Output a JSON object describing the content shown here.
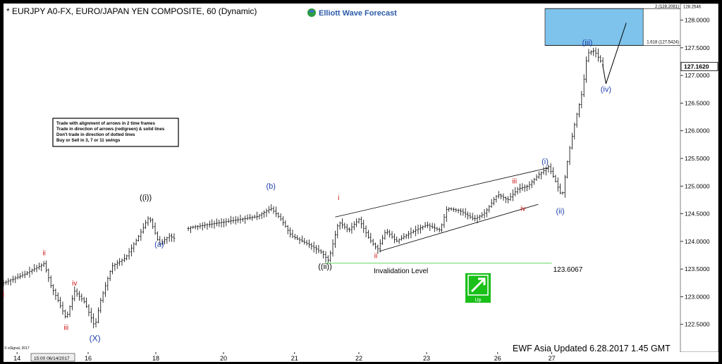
{
  "header": {
    "title": "* EURJPY A0-FX, EURO/JAPAN YEN COMPOSITE, 60 (Dynamic)",
    "brand": "Elliott Wave Forecast"
  },
  "footer": {
    "update_text": "EWF Asia Updated 6.28.2017 1.45 GMT",
    "copyright": "© eSignal, 2017",
    "cursor_time": "15:00 06/14/2017"
  },
  "rules_box": {
    "lines": [
      "Trade with alignment of arrows in 2 time frames",
      "Trade in direction of arrows (red/green) & solid lines",
      "Don't trade in direction of dotted lines",
      "Buy or Sell in 3, 7 or 11 swings"
    ]
  },
  "up_badge": {
    "label": "Up",
    "color": "#19c019"
  },
  "colors": {
    "wave_blue": "#1f3fa8",
    "wave_red": "#cc1010",
    "invalidation_green": "#7ee07e",
    "target_box": "#7ec3ec",
    "background": "#ffffff"
  },
  "chart_data": {
    "type": "ohlc",
    "symbol": "EURJPY",
    "timeframe": "60",
    "ylim": [
      122.0,
      128.3
    ],
    "y_ticks": [
      "122.5000",
      "123.0000",
      "123.5000",
      "124.0000",
      "124.5000",
      "125.0000",
      "125.5000",
      "126.0000",
      "126.5000",
      "127.0000",
      "127.5000",
      "128.0000"
    ],
    "y_tick_values": [
      122.5,
      123.0,
      123.5,
      124.0,
      124.5,
      125.0,
      125.5,
      126.0,
      126.5,
      127.0,
      127.5,
      128.0
    ],
    "x_ticks": [
      "14",
      "16",
      "18",
      "20",
      "21",
      "22",
      "23",
      "26",
      "27"
    ],
    "x_tick_values": [
      0.4,
      2.5,
      4.5,
      6.5,
      8.6,
      10.5,
      12.5,
      14.6,
      16.2
    ],
    "xlim": [
      0,
      20
    ],
    "last_price": "127.1620",
    "last_price_value": 127.162,
    "invalidation": {
      "label": "Invalidation Level",
      "value_label": "123.6067",
      "value": 123.6067,
      "x_start": 9.5,
      "x_end": 16.2
    },
    "target_zone": {
      "fib_low_label": "1.618 (127.5424)",
      "fib_high_label": "2 (128.2081)",
      "low": 127.5424,
      "high": 128.2081,
      "top_right_label": "128.2546",
      "top_right_value": 128.2546,
      "x_start": 16.0,
      "x_end": 18.9
    },
    "channel_lines": [
      {
        "x1": 9.8,
        "y1": 124.44,
        "x2": 16.1,
        "y2": 125.33
      },
      {
        "x1": 11.1,
        "y1": 123.82,
        "x2": 15.8,
        "y2": 124.67
      }
    ],
    "projection_path": [
      [
        17.8,
        126.85
      ],
      [
        18.4,
        127.95
      ]
    ],
    "wave_labels": [
      {
        "text": "i",
        "x": 0.0,
        "y": 123.0,
        "color": "red",
        "size": 10
      },
      {
        "text": "ii",
        "x": 1.2,
        "y": 123.75,
        "color": "red",
        "size": 10
      },
      {
        "text": "iii",
        "x": 1.85,
        "y": 122.4,
        "color": "red",
        "size": 10
      },
      {
        "text": "iv",
        "x": 2.1,
        "y": 123.2,
        "color": "red",
        "size": 10
      },
      {
        "text": "(X)",
        "x": 2.7,
        "y": 122.2,
        "color": "blue",
        "size": 12
      },
      {
        "text": "((i))",
        "x": 4.2,
        "y": 124.75,
        "color": "black",
        "size": 11
      },
      {
        "text": "(a)",
        "x": 4.6,
        "y": 123.9,
        "color": "blue",
        "size": 11
      },
      {
        "text": "(b)",
        "x": 7.9,
        "y": 124.95,
        "color": "blue",
        "size": 11
      },
      {
        "text": "((ii))",
        "x": 9.5,
        "y": 123.5,
        "color": "black",
        "size": 11
      },
      {
        "text": "i",
        "x": 9.9,
        "y": 124.75,
        "color": "red",
        "size": 10
      },
      {
        "text": "ii",
        "x": 11.0,
        "y": 123.7,
        "color": "red",
        "size": 10
      },
      {
        "text": "iii",
        "x": 15.1,
        "y": 125.05,
        "color": "red",
        "size": 10
      },
      {
        "text": "iv",
        "x": 15.35,
        "y": 124.55,
        "color": "red",
        "size": 10
      },
      {
        "text": "(i)",
        "x": 16.0,
        "y": 125.4,
        "color": "blue",
        "size": 11
      },
      {
        "text": "(ii)",
        "x": 16.45,
        "y": 124.5,
        "color": "blue",
        "size": 11
      },
      {
        "text": "(iii)",
        "x": 17.25,
        "y": 127.55,
        "color": "blue",
        "size": 11
      },
      {
        "text": "(iv)",
        "x": 17.8,
        "y": 126.7,
        "color": "blue",
        "size": 11
      }
    ],
    "price_anchors": [
      [
        0.0,
        123.25
      ],
      [
        0.6,
        123.4
      ],
      [
        1.2,
        123.6
      ],
      [
        1.4,
        123.2
      ],
      [
        1.6,
        122.95
      ],
      [
        1.85,
        122.6
      ],
      [
        2.1,
        123.1
      ],
      [
        2.4,
        122.9
      ],
      [
        2.7,
        122.45
      ],
      [
        2.85,
        122.9
      ],
      [
        3.2,
        123.55
      ],
      [
        3.6,
        123.7
      ],
      [
        4.0,
        124.1
      ],
      [
        4.3,
        124.45
      ],
      [
        4.45,
        124.2
      ],
      [
        4.6,
        123.95
      ],
      [
        4.9,
        124.1
      ],
      [
        5.05,
        124.05
      ],
      [
        5.5,
        124.25
      ],
      [
        6.0,
        124.3
      ],
      [
        6.5,
        124.35
      ],
      [
        7.0,
        124.4
      ],
      [
        7.5,
        124.45
      ],
      [
        7.9,
        124.6
      ],
      [
        8.2,
        124.4
      ],
      [
        8.5,
        124.1
      ],
      [
        9.0,
        123.95
      ],
      [
        9.4,
        123.8
      ],
      [
        9.6,
        123.65
      ],
      [
        9.9,
        124.35
      ],
      [
        10.2,
        124.2
      ],
      [
        10.5,
        124.4
      ],
      [
        10.8,
        124.05
      ],
      [
        11.05,
        123.85
      ],
      [
        11.3,
        124.2
      ],
      [
        11.6,
        124.0
      ],
      [
        12.0,
        124.15
      ],
      [
        12.5,
        124.3
      ],
      [
        12.9,
        124.2
      ],
      [
        13.1,
        124.6
      ],
      [
        13.5,
        124.55
      ],
      [
        13.9,
        124.4
      ],
      [
        14.2,
        124.5
      ],
      [
        14.6,
        124.85
      ],
      [
        14.9,
        124.75
      ],
      [
        15.2,
        124.95
      ],
      [
        15.5,
        125.0
      ],
      [
        15.8,
        125.2
      ],
      [
        16.1,
        125.35
      ],
      [
        16.3,
        125.1
      ],
      [
        16.5,
        124.8
      ],
      [
        16.7,
        125.6
      ],
      [
        16.9,
        126.2
      ],
      [
        17.1,
        126.7
      ],
      [
        17.25,
        127.4
      ],
      [
        17.45,
        127.45
      ],
      [
        17.6,
        127.3
      ],
      [
        17.75,
        127.15
      ]
    ]
  }
}
